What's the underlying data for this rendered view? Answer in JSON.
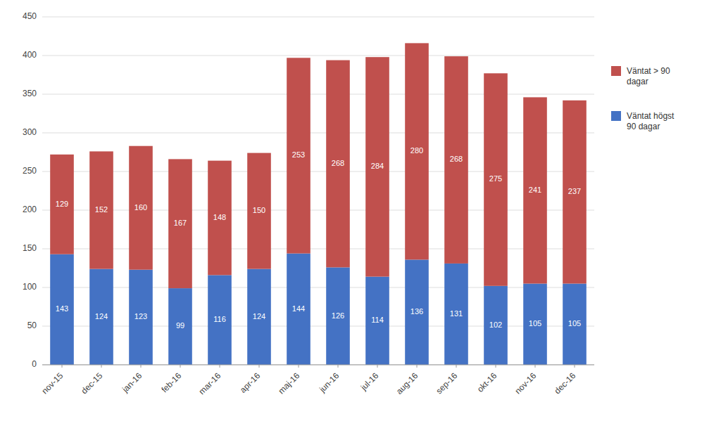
{
  "chart_data": {
    "type": "bar",
    "stacked": true,
    "categories": [
      "nov-15",
      "dec-15",
      "jan-16",
      "feb-16",
      "mar-16",
      "apr-16",
      "maj-16",
      "jun-16",
      "jul-16",
      "aug-16",
      "sep-16",
      "okt-16",
      "nov-16",
      "dec-16"
    ],
    "series": [
      {
        "name": "Väntat  högst\n 90 dagar",
        "color": "#4472C4",
        "values": [
          143,
          124,
          123,
          99,
          116,
          124,
          144,
          126,
          114,
          136,
          131,
          102,
          105,
          105
        ]
      },
      {
        "name": "Väntat > 90\n dagar",
        "color": "#C0504D",
        "values": [
          129,
          152,
          160,
          167,
          148,
          150,
          253,
          268,
          284,
          280,
          268,
          275,
          241,
          237
        ]
      }
    ],
    "ylim": [
      0,
      450
    ],
    "yticks": [
      0,
      50,
      100,
      150,
      200,
      250,
      300,
      350,
      400,
      450
    ],
    "grid": true,
    "data_labels": true,
    "legend": "right"
  }
}
